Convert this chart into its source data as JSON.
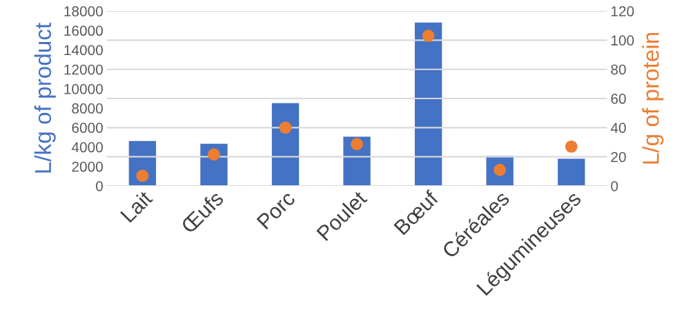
{
  "chart_data": {
    "type": "bar",
    "categories": [
      "Lait",
      "Œufs",
      "Porc",
      "Poulet",
      "Bœuf",
      "Céréales",
      "Légumineuses"
    ],
    "series": [
      {
        "color": "#4472c4",
        "values": [
          4620,
          4340,
          8530,
          5060,
          16810,
          3090,
          2800
        ]
      },
      {
        "type": "scatter",
        "axis": "y2",
        "color": "#ed7d31",
        "marker": "circle",
        "values": [
          7,
          21.6,
          40,
          28.7,
          103,
          11,
          27
        ]
      }
    ],
    "ylabel": "L/kg of product",
    "y2label": "L/g of protein",
    "ylim": [
      0,
      18000
    ],
    "yticks": [
      0,
      2000,
      4000,
      6000,
      8000,
      10000,
      12000,
      14000,
      16000,
      18000
    ],
    "y2lim": [
      0,
      120
    ],
    "y2ticks": [
      0,
      20,
      40,
      60,
      80,
      100,
      120
    ],
    "grid": "y2"
  }
}
